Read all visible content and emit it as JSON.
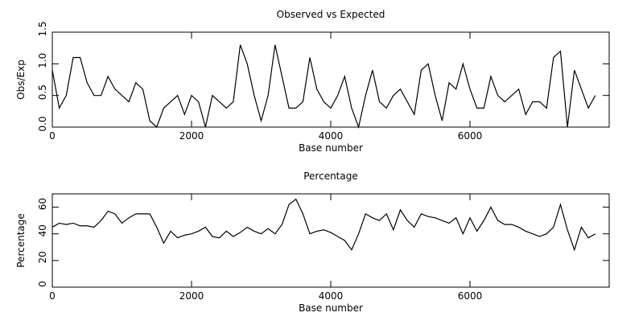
{
  "chart_data": [
    {
      "type": "line",
      "title": "Observed vs Expected",
      "xlabel": "Base number",
      "ylabel": "Obs/Exp",
      "xlim": [
        0,
        8000
      ],
      "xticks": [
        0,
        2000,
        4000,
        6000
      ],
      "ylim": [
        0,
        1.5
      ],
      "yticks": [
        {
          "value": 0,
          "label": "0.0"
        },
        {
          "value": 0.5,
          "label": "0.5"
        },
        {
          "value": 1,
          "label": "1.0"
        },
        {
          "value": 1.5,
          "label": "1.5"
        }
      ],
      "color": "#000000",
      "x": [
        0,
        100,
        200,
        300,
        400,
        500,
        600,
        700,
        800,
        900,
        1000,
        1100,
        1200,
        1300,
        1400,
        1500,
        1600,
        1700,
        1800,
        1900,
        2000,
        2100,
        2200,
        2300,
        2400,
        2500,
        2600,
        2700,
        2800,
        2900,
        3000,
        3100,
        3200,
        3300,
        3400,
        3500,
        3600,
        3700,
        3800,
        3900,
        4000,
        4100,
        4200,
        4300,
        4400,
        4500,
        4600,
        4700,
        4800,
        4900,
        5000,
        5100,
        5200,
        5300,
        5400,
        5500,
        5600,
        5700,
        5800,
        5900,
        6000,
        6100,
        6200,
        6300,
        6400,
        6500,
        6600,
        6700,
        6800,
        6900,
        7000,
        7100,
        7200,
        7300,
        7400,
        7500,
        7600,
        7700,
        7800
      ],
      "values": [
        0.9,
        0.3,
        0.5,
        1.1,
        1.1,
        0.7,
        0.5,
        0.5,
        0.8,
        0.6,
        0.5,
        0.4,
        0.7,
        0.6,
        0.1,
        0.0,
        0.3,
        0.4,
        0.5,
        0.2,
        0.5,
        0.4,
        0.0,
        0.5,
        0.4,
        0.3,
        0.4,
        1.3,
        1.0,
        0.5,
        0.1,
        0.5,
        1.3,
        0.8,
        0.3,
        0.3,
        0.4,
        1.1,
        0.6,
        0.4,
        0.3,
        0.5,
        0.8,
        0.3,
        0.0,
        0.5,
        0.9,
        0.4,
        0.3,
        0.5,
        0.6,
        0.4,
        0.2,
        0.9,
        1.0,
        0.5,
        0.1,
        0.7,
        0.6,
        1.0,
        0.6,
        0.3,
        0.3,
        0.8,
        0.5,
        0.4,
        0.5,
        0.6,
        0.2,
        0.4,
        0.4,
        0.3,
        1.1,
        1.2,
        0.0,
        0.9,
        0.6,
        0.3,
        0.5
      ]
    },
    {
      "type": "line",
      "title": "Percentage",
      "xlabel": "Base number",
      "ylabel": "Percentage",
      "xlim": [
        0,
        8000
      ],
      "xticks": [
        0,
        2000,
        4000,
        6000
      ],
      "ylim": [
        0,
        70
      ],
      "yticks": [
        0,
        20,
        40,
        60
      ],
      "color": "#000000",
      "x": [
        0,
        100,
        200,
        300,
        400,
        500,
        600,
        700,
        800,
        900,
        1000,
        1100,
        1200,
        1300,
        1400,
        1500,
        1600,
        1700,
        1800,
        1900,
        2000,
        2100,
        2200,
        2300,
        2400,
        2500,
        2600,
        2700,
        2800,
        2900,
        3000,
        3100,
        3200,
        3300,
        3400,
        3500,
        3600,
        3700,
        3800,
        3900,
        4000,
        4100,
        4200,
        4300,
        4400,
        4500,
        4600,
        4700,
        4800,
        4900,
        5000,
        5100,
        5200,
        5300,
        5400,
        5500,
        5600,
        5700,
        5800,
        5900,
        6000,
        6100,
        6200,
        6300,
        6400,
        6500,
        6600,
        6700,
        6800,
        6900,
        7000,
        7100,
        7200,
        7300,
        7400,
        7500,
        7600,
        7700,
        7800
      ],
      "values": [
        45,
        48,
        47,
        48,
        46,
        46,
        45,
        50,
        57,
        55,
        48,
        52,
        55,
        55,
        55,
        45,
        33,
        42,
        37,
        39,
        40,
        42,
        45,
        38,
        37,
        42,
        38,
        41,
        45,
        42,
        40,
        44,
        40,
        47,
        62,
        66,
        55,
        40,
        42,
        43,
        41,
        38,
        35,
        28,
        40,
        55,
        52,
        50,
        55,
        43,
        58,
        50,
        45,
        55,
        53,
        52,
        50,
        48,
        52,
        40,
        52,
        42,
        50,
        60,
        50,
        47,
        47,
        45,
        42,
        40,
        38,
        40,
        45,
        62,
        43,
        28,
        45,
        37,
        40
      ]
    }
  ]
}
